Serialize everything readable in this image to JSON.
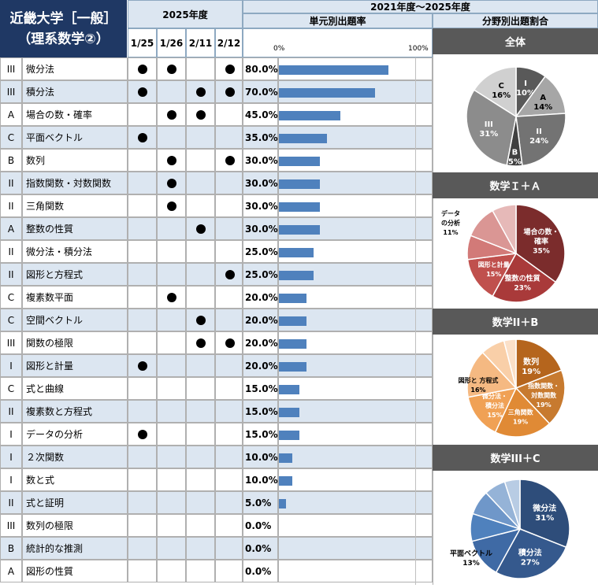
{
  "header": {
    "title_line1": "近畿大学［一般］",
    "title_line2": "（理系数学②）",
    "year_label": "2025年度",
    "range_label": "2021年度～2025年度",
    "rate_label": "単元別出題率",
    "share_label": "分野別出題割合",
    "dates": [
      "1/25",
      "1/26",
      "2/11",
      "2/12"
    ],
    "scale_min": "0%",
    "scale_max": "100%"
  },
  "chart_data": [
    {
      "type": "bar",
      "title": "単元別出題率",
      "xlim": [
        0,
        100
      ],
      "rows": [
        {
          "cat": "III",
          "name": "微分法",
          "marks": [
            true,
            true,
            false,
            true
          ],
          "rate_label": "80.0%",
          "value": 80
        },
        {
          "cat": "III",
          "name": "積分法",
          "marks": [
            true,
            false,
            true,
            true
          ],
          "rate_label": "70.0%",
          "value": 70
        },
        {
          "cat": "A",
          "name": "場合の数・確率",
          "marks": [
            false,
            true,
            true,
            false
          ],
          "rate_label": "45.0%",
          "value": 45
        },
        {
          "cat": "C",
          "name": "平面ベクトル",
          "marks": [
            true,
            false,
            false,
            false
          ],
          "rate_label": "35.0%",
          "value": 35
        },
        {
          "cat": "B",
          "name": "数列",
          "marks": [
            false,
            true,
            false,
            true
          ],
          "rate_label": "30.0%",
          "value": 30
        },
        {
          "cat": "II",
          "name": "指数関数・対数関数",
          "marks": [
            false,
            true,
            false,
            false
          ],
          "rate_label": "30.0%",
          "value": 30
        },
        {
          "cat": "II",
          "name": "三角関数",
          "marks": [
            false,
            true,
            false,
            false
          ],
          "rate_label": "30.0%",
          "value": 30
        },
        {
          "cat": "A",
          "name": "整数の性質",
          "marks": [
            false,
            false,
            true,
            false
          ],
          "rate_label": "30.0%",
          "value": 30
        },
        {
          "cat": "II",
          "name": "微分法・積分法",
          "marks": [
            false,
            false,
            false,
            false
          ],
          "rate_label": "25.0%",
          "value": 25
        },
        {
          "cat": "II",
          "name": "図形と方程式",
          "marks": [
            false,
            false,
            false,
            true
          ],
          "rate_label": "25.0%",
          "value": 25
        },
        {
          "cat": "C",
          "name": "複素数平面",
          "marks": [
            false,
            true,
            false,
            false
          ],
          "rate_label": "20.0%",
          "value": 20
        },
        {
          "cat": "C",
          "name": "空間ベクトル",
          "marks": [
            false,
            false,
            true,
            false
          ],
          "rate_label": "20.0%",
          "value": 20
        },
        {
          "cat": "III",
          "name": "関数の極限",
          "marks": [
            false,
            false,
            true,
            true
          ],
          "rate_label": "20.0%",
          "value": 20
        },
        {
          "cat": "I",
          "name": "図形と計量",
          "marks": [
            true,
            false,
            false,
            false
          ],
          "rate_label": "20.0%",
          "value": 20
        },
        {
          "cat": "C",
          "name": "式と曲線",
          "marks": [
            false,
            false,
            false,
            false
          ],
          "rate_label": "15.0%",
          "value": 15
        },
        {
          "cat": "II",
          "name": "複素数と方程式",
          "marks": [
            false,
            false,
            false,
            false
          ],
          "rate_label": "15.0%",
          "value": 15
        },
        {
          "cat": "I",
          "name": "データの分析",
          "marks": [
            true,
            false,
            false,
            false
          ],
          "rate_label": "15.0%",
          "value": 15
        },
        {
          "cat": "I",
          "name": "２次関数",
          "marks": [
            false,
            false,
            false,
            false
          ],
          "rate_label": "10.0%",
          "value": 10
        },
        {
          "cat": "I",
          "name": "数と式",
          "marks": [
            false,
            false,
            false,
            false
          ],
          "rate_label": "10.0%",
          "value": 10
        },
        {
          "cat": "II",
          "name": "式と証明",
          "marks": [
            false,
            false,
            false,
            false
          ],
          "rate_label": "5.0%",
          "value": 5
        },
        {
          "cat": "III",
          "name": "数列の極限",
          "marks": [
            false,
            false,
            false,
            false
          ],
          "rate_label": "0.0%",
          "value": 0
        },
        {
          "cat": "B",
          "name": "統計的な推測",
          "marks": [
            false,
            false,
            false,
            false
          ],
          "rate_label": "0.0%",
          "value": 0
        },
        {
          "cat": "A",
          "name": "図形の性質",
          "marks": [
            false,
            false,
            false,
            false
          ],
          "rate_label": "0.0%",
          "value": 0
        }
      ]
    },
    {
      "type": "pie",
      "title": "全体",
      "slices": [
        {
          "label": "I",
          "value": 10,
          "pct": "10%",
          "color": "#595959"
        },
        {
          "label": "A",
          "value": 14,
          "pct": "14%",
          "color": "#a6a6a6"
        },
        {
          "label": "II",
          "value": 24,
          "pct": "24%",
          "color": "#737373"
        },
        {
          "label": "B",
          "value": 5,
          "pct": "5%",
          "color": "#404040"
        },
        {
          "label": "III",
          "value": 31,
          "pct": "31%",
          "color": "#8c8c8c"
        },
        {
          "label": "C",
          "value": 16,
          "pct": "16%",
          "color": "#d0d0d0"
        }
      ]
    },
    {
      "type": "pie",
      "title": "数学Ｉ＋Ａ",
      "slices": [
        {
          "label": "場合の数・確率",
          "value": 35,
          "pct": "35%",
          "color": "#7b2c2c"
        },
        {
          "label": "整数の性質",
          "value": 23,
          "pct": "23%",
          "color": "#a93a3a"
        },
        {
          "label": "図形と計量",
          "value": 15,
          "pct": "15%",
          "color": "#c0504d"
        },
        {
          "label": "",
          "value": 8,
          "pct": "",
          "color": "#d27a78"
        },
        {
          "label": "データの分析",
          "value": 11,
          "pct": "11%",
          "color": "#da9694"
        },
        {
          "label": "",
          "value": 8,
          "pct": "",
          "color": "#e6b9b8"
        }
      ]
    },
    {
      "type": "pie",
      "title": "数学II＋B",
      "slices": [
        {
          "label": "数列",
          "value": 19,
          "pct": "19%",
          "color": "#b5651d"
        },
        {
          "label": "指数関数・対数関数",
          "value": 19,
          "pct": "19%",
          "color": "#c77a2f"
        },
        {
          "label": "三角関数",
          "value": 19,
          "pct": "19%",
          "color": "#e08a35"
        },
        {
          "label": "微分法・積分法",
          "value": 15,
          "pct": "15%",
          "color": "#f0a155"
        },
        {
          "label": "図形と方程式",
          "value": 16,
          "pct": "16%",
          "color": "#f5b982"
        },
        {
          "label": "",
          "value": 8,
          "pct": "",
          "color": "#f9cfa8"
        },
        {
          "label": "",
          "value": 4,
          "pct": "",
          "color": "#fbe0c8"
        }
      ]
    },
    {
      "type": "pie",
      "title": "数学III＋C",
      "slices": [
        {
          "label": "微分法",
          "value": 31,
          "pct": "31%",
          "color": "#2e4d7a"
        },
        {
          "label": "積分法",
          "value": 27,
          "pct": "27%",
          "color": "#35598d"
        },
        {
          "label": "平面ベクトル",
          "value": 13,
          "pct": "13%",
          "color": "#3f6aa5"
        },
        {
          "label": "",
          "value": 9,
          "pct": "",
          "color": "#4f81bd"
        },
        {
          "label": "",
          "value": 8,
          "pct": "",
          "color": "#6f97c9"
        },
        {
          "label": "",
          "value": 7,
          "pct": "",
          "color": "#95b3d7"
        },
        {
          "label": "",
          "value": 5,
          "pct": "",
          "color": "#b8cce4"
        }
      ]
    }
  ]
}
